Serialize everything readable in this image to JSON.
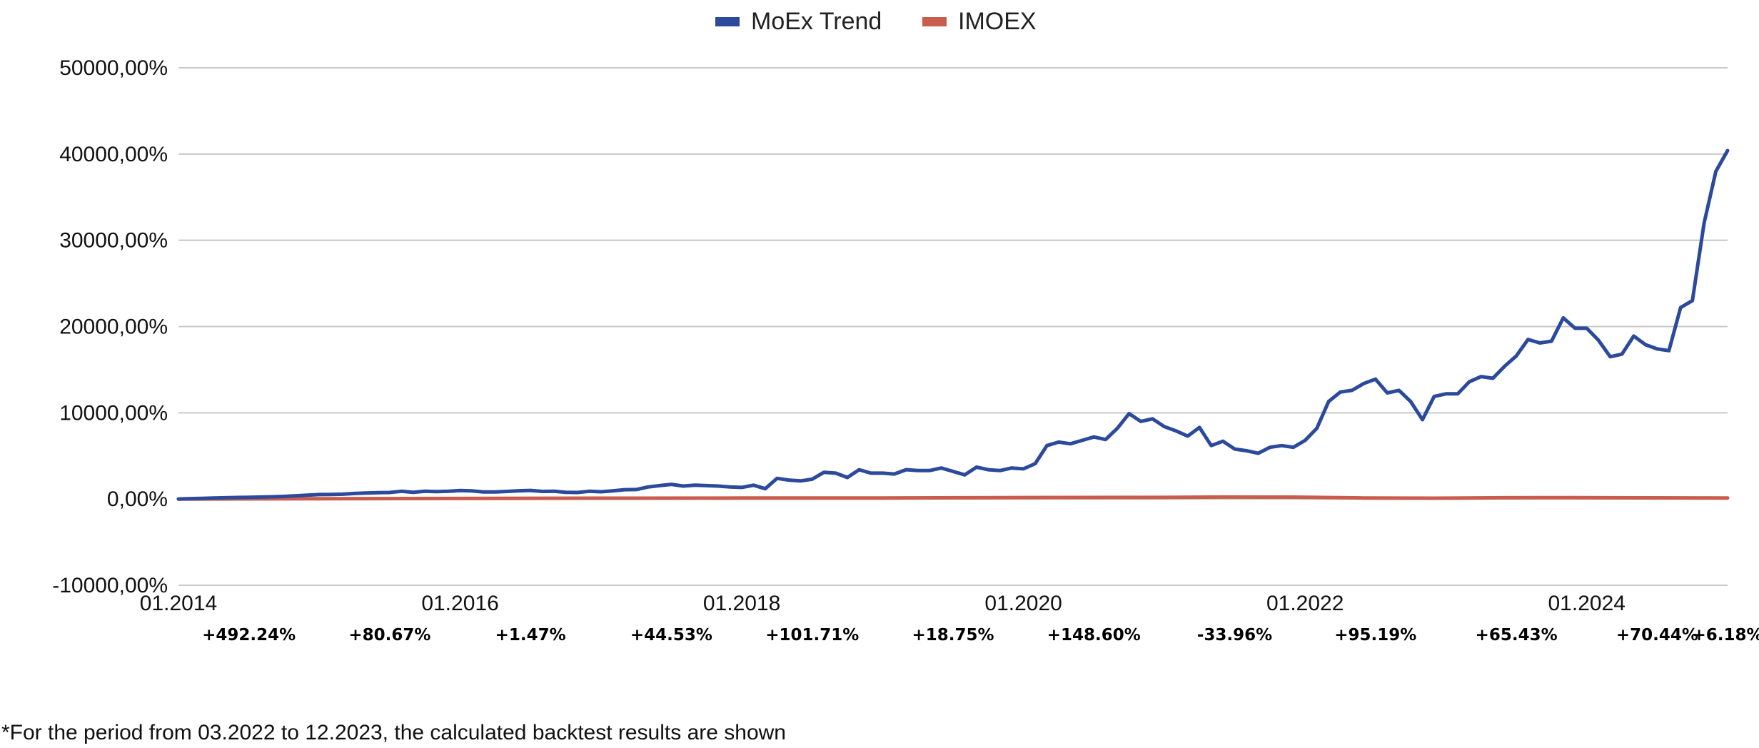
{
  "chart_data": {
    "type": "line",
    "title": "",
    "xlabel": "",
    "ylabel": "",
    "ylim": [
      -10000,
      50000
    ],
    "y_ticks": [
      -10000,
      0,
      10000,
      20000,
      30000,
      40000,
      50000
    ],
    "y_tick_labels": [
      "-10000,00%",
      "0,00%",
      "10000,00%",
      "20000,00%",
      "30000,00%",
      "40000,00%",
      "50000,00%"
    ],
    "x_start": "01.2014",
    "x_end": "12.2024",
    "x_tick_labels": [
      "01.2014",
      "01.2016",
      "01.2018",
      "01.2020",
      "01.2022",
      "01.2024"
    ],
    "grid": true,
    "legend_position": "top-center",
    "series": [
      {
        "name": "MoEx Trend",
        "color": "#2c4a9c",
        "points": [
          [
            "01.2014",
            0
          ],
          [
            "02.2014",
            50
          ],
          [
            "03.2014",
            80
          ],
          [
            "04.2014",
            120
          ],
          [
            "05.2014",
            150
          ],
          [
            "06.2014",
            180
          ],
          [
            "07.2014",
            200
          ],
          [
            "08.2014",
            230
          ],
          [
            "09.2014",
            260
          ],
          [
            "10.2014",
            300
          ],
          [
            "11.2014",
            380
          ],
          [
            "12.2014",
            450
          ],
          [
            "01.2015",
            520
          ],
          [
            "02.2015",
            530
          ],
          [
            "03.2015",
            560
          ],
          [
            "04.2015",
            640
          ],
          [
            "05.2015",
            700
          ],
          [
            "06.2015",
            740
          ],
          [
            "07.2015",
            760
          ],
          [
            "08.2015",
            900
          ],
          [
            "09.2015",
            780
          ],
          [
            "10.2015",
            900
          ],
          [
            "11.2015",
            860
          ],
          [
            "12.2015",
            900
          ],
          [
            "01.2016",
            980
          ],
          [
            "02.2016",
            950
          ],
          [
            "03.2016",
            820
          ],
          [
            "04.2016",
            820
          ],
          [
            "05.2016",
            880
          ],
          [
            "06.2016",
            960
          ],
          [
            "07.2016",
            1000
          ],
          [
            "08.2016",
            880
          ],
          [
            "09.2016",
            900
          ],
          [
            "10.2016",
            780
          ],
          [
            "11.2016",
            760
          ],
          [
            "12.2016",
            900
          ],
          [
            "01.2017",
            840
          ],
          [
            "02.2017",
            950
          ],
          [
            "03.2017",
            1080
          ],
          [
            "04.2017",
            1100
          ],
          [
            "05.2017",
            1400
          ],
          [
            "06.2017",
            1550
          ],
          [
            "07.2017",
            1700
          ],
          [
            "08.2017",
            1500
          ],
          [
            "09.2017",
            1600
          ],
          [
            "10.2017",
            1550
          ],
          [
            "11.2017",
            1500
          ],
          [
            "12.2017",
            1400
          ],
          [
            "01.2018",
            1350
          ],
          [
            "02.2018",
            1600
          ],
          [
            "03.2018",
            1200
          ],
          [
            "04.2018",
            2400
          ],
          [
            "05.2018",
            2200
          ],
          [
            "06.2018",
            2100
          ],
          [
            "07.2018",
            2300
          ],
          [
            "08.2018",
            3100
          ],
          [
            "09.2018",
            3000
          ],
          [
            "10.2018",
            2500
          ],
          [
            "11.2018",
            3400
          ],
          [
            "12.2018",
            3000
          ],
          [
            "01.2019",
            3000
          ],
          [
            "02.2019",
            2900
          ],
          [
            "03.2019",
            3400
          ],
          [
            "04.2019",
            3300
          ],
          [
            "05.2019",
            3300
          ],
          [
            "06.2019",
            3600
          ],
          [
            "07.2019",
            3200
          ],
          [
            "08.2019",
            2800
          ],
          [
            "09.2019",
            3700
          ],
          [
            "10.2019",
            3400
          ],
          [
            "11.2019",
            3300
          ],
          [
            "12.2019",
            3600
          ],
          [
            "01.2020",
            3500
          ],
          [
            "02.2020",
            4100
          ],
          [
            "03.2020",
            6200
          ],
          [
            "04.2020",
            6600
          ],
          [
            "05.2020",
            6400
          ],
          [
            "06.2020",
            6800
          ],
          [
            "07.2020",
            7200
          ],
          [
            "08.2020",
            6900
          ],
          [
            "09.2020",
            8200
          ],
          [
            "10.2020",
            9900
          ],
          [
            "11.2020",
            9000
          ],
          [
            "12.2020",
            9300
          ],
          [
            "01.2021",
            8400
          ],
          [
            "02.2021",
            7900
          ],
          [
            "03.2021",
            7300
          ],
          [
            "04.2021",
            8300
          ],
          [
            "05.2021",
            6200
          ],
          [
            "06.2021",
            6700
          ],
          [
            "07.2021",
            5800
          ],
          [
            "08.2021",
            5600
          ],
          [
            "09.2021",
            5300
          ],
          [
            "10.2021",
            6000
          ],
          [
            "11.2021",
            6200
          ],
          [
            "12.2021",
            6000
          ],
          [
            "01.2022",
            6800
          ],
          [
            "02.2022",
            8200
          ],
          [
            "03.2022",
            11300
          ],
          [
            "04.2022",
            12400
          ],
          [
            "05.2022",
            12600
          ],
          [
            "06.2022",
            13400
          ],
          [
            "07.2022",
            13900
          ],
          [
            "08.2022",
            12300
          ],
          [
            "09.2022",
            12600
          ],
          [
            "10.2022",
            11300
          ],
          [
            "11.2022",
            9200
          ],
          [
            "12.2022",
            11900
          ],
          [
            "01.2023",
            12200
          ],
          [
            "02.2023",
            12200
          ],
          [
            "03.2023",
            13600
          ],
          [
            "04.2023",
            14200
          ],
          [
            "05.2023",
            14000
          ],
          [
            "06.2023",
            15400
          ],
          [
            "07.2023",
            16600
          ],
          [
            "08.2023",
            18500
          ],
          [
            "09.2023",
            18100
          ],
          [
            "10.2023",
            18300
          ],
          [
            "11.2023",
            21000
          ],
          [
            "12.2023",
            19800
          ],
          [
            "01.2024",
            19800
          ],
          [
            "02.2024",
            18400
          ],
          [
            "03.2024",
            16500
          ],
          [
            "04.2024",
            16800
          ],
          [
            "05.2024",
            18900
          ],
          [
            "06.2024",
            17900
          ],
          [
            "07.2024",
            17400
          ],
          [
            "08.2024",
            17200
          ],
          [
            "09.2024",
            22200
          ],
          [
            "10.2024",
            23000
          ],
          [
            "11.2024",
            32000
          ],
          [
            "12.2024",
            38000
          ],
          [
            "01.2025",
            40400
          ]
        ]
      },
      {
        "name": "IMOEX",
        "color": "#c95d4d",
        "points": [
          [
            "01.2014",
            0
          ],
          [
            "01.2015",
            40
          ],
          [
            "01.2016",
            60
          ],
          [
            "01.2017",
            100
          ],
          [
            "01.2018",
            110
          ],
          [
            "01.2019",
            115
          ],
          [
            "01.2020",
            170
          ],
          [
            "01.2021",
            190
          ],
          [
            "06.2021",
            230
          ],
          [
            "12.2021",
            220
          ],
          [
            "06.2022",
            120
          ],
          [
            "12.2022",
            100
          ],
          [
            "06.2023",
            150
          ],
          [
            "12.2023",
            160
          ],
          [
            "06.2024",
            140
          ],
          [
            "01.2025",
            120
          ]
        ]
      }
    ],
    "annual_returns": [
      {
        "year": "2014",
        "label": "+492.24%"
      },
      {
        "year": "2015",
        "label": "+80.67%"
      },
      {
        "year": "2016",
        "label": "+1.47%"
      },
      {
        "year": "2017",
        "label": "+44.53%"
      },
      {
        "year": "2018",
        "label": "+101.71%"
      },
      {
        "year": "2019",
        "label": "+18.75%"
      },
      {
        "year": "2020",
        "label": "+148.60%"
      },
      {
        "year": "2021",
        "label": "-33.96%"
      },
      {
        "year": "2022",
        "label": "+95.19%"
      },
      {
        "year": "2023",
        "label": "+65.43%"
      },
      {
        "year": "2024",
        "label": "+70.44%"
      },
      {
        "year": "2025",
        "label": "+6.18%"
      }
    ]
  },
  "footnote": "*For the period from 03.2022 to 12.2023, the calculated backtest results are shown"
}
